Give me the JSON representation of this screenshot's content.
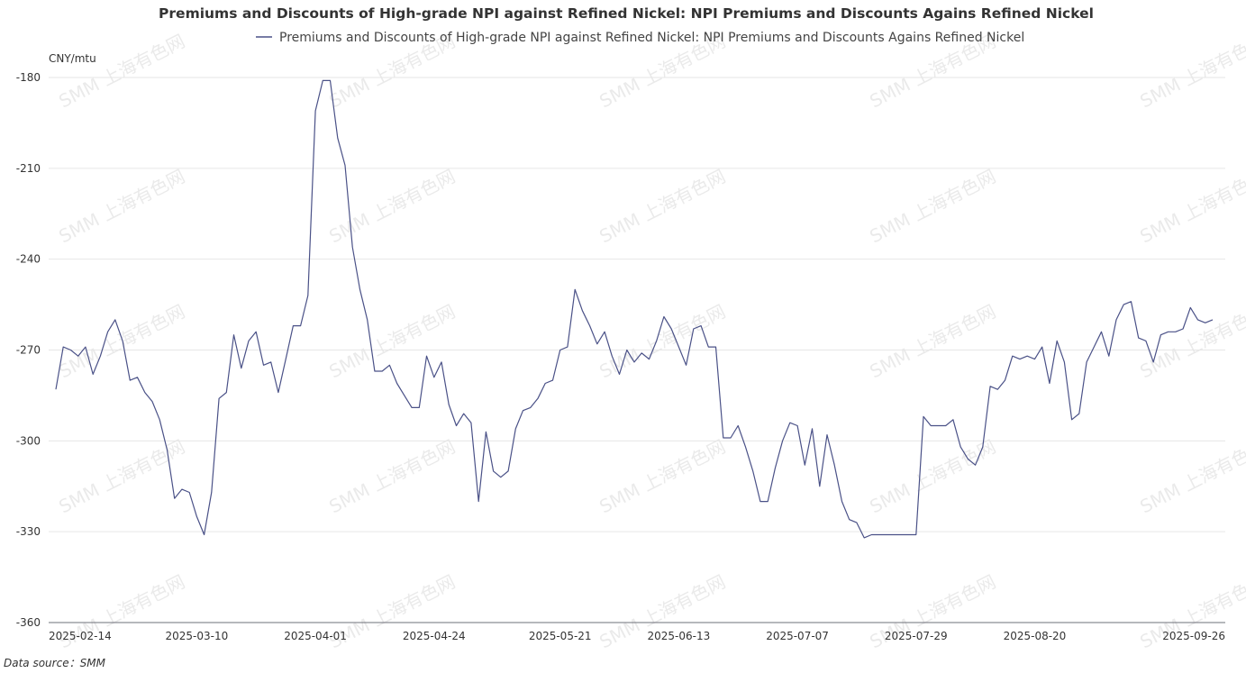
{
  "chart_data": {
    "type": "line",
    "title": "Premiums and Discounts of High-grade NPI against Refined Nickel: NPI Premiums and Discounts Agains Refined Nickel",
    "ylabel": "CNY/mtu",
    "ylim": [
      -360,
      -180
    ],
    "yticks": [
      -180,
      -210,
      -240,
      -270,
      -300,
      -330,
      -360
    ],
    "xtick_labels": [
      "2025-02-14",
      "2025-03-10",
      "2025-04-01",
      "2025-04-24",
      "2025-05-21",
      "2025-06-13",
      "2025-07-07",
      "2025-07-29",
      "2025-08-20",
      "2025-09-26"
    ],
    "xtick_index": [
      0,
      19,
      35,
      51,
      68,
      84,
      100,
      116,
      132,
      155
    ],
    "grid": true,
    "legend": "top-center",
    "series": [
      {
        "name": "Premiums and Discounts of High-grade NPI against Refined Nickel: NPI Premiums and Discounts Agains Refined Nickel",
        "color": "#4a5187",
        "values": [
          -283,
          -269,
          -270,
          -272,
          -269,
          -278,
          -272,
          -264,
          -260,
          -267,
          -280,
          -279,
          -284,
          -287,
          -293,
          -303,
          -319,
          -316,
          -317,
          -325,
          -331,
          -317,
          -286,
          -284,
          -265,
          -276,
          -267,
          -264,
          -275,
          -274,
          -284,
          -273,
          -262,
          -262,
          -252,
          -191,
          -181,
          -181,
          -200,
          -209,
          -236,
          -250,
          -260,
          -277,
          -277,
          -275,
          -281,
          -285,
          -289,
          -289,
          -272,
          -279,
          -274,
          -288,
          -295,
          -291,
          -294,
          -320,
          -297,
          -310,
          -312,
          -310,
          -296,
          -290,
          -289,
          -286,
          -281,
          -280,
          -270,
          -269,
          -250,
          -257,
          -262,
          -268,
          -264,
          -272,
          -278,
          -270,
          -274,
          -271,
          -273,
          -267,
          -259,
          -263,
          -269,
          -275,
          -263,
          -262,
          -269,
          -269,
          -299,
          -299,
          -295,
          -302,
          -310,
          -320,
          -320,
          -309,
          -300,
          -294,
          -295,
          -308,
          -296,
          -315,
          -298,
          -308,
          -320,
          -326,
          -327,
          -332,
          -331,
          -331,
          -331,
          -331,
          -331,
          -331,
          -331,
          -292,
          -295,
          -295,
          -295,
          -293,
          -302,
          -306,
          -308,
          -302,
          -282,
          -283,
          -280,
          -272,
          -273,
          -272,
          -273,
          -269,
          -281,
          -267,
          -274,
          -293,
          -291,
          -274,
          -269,
          -264,
          -272,
          -260,
          -255,
          -254,
          -266,
          -267,
          -274,
          -265,
          -264,
          -264,
          -263,
          -256,
          -260,
          -261,
          -260
        ]
      }
    ]
  },
  "watermark": "SMM 上海有色网",
  "footer": {
    "source_label": "Data source：",
    "source_value": "SMM"
  }
}
